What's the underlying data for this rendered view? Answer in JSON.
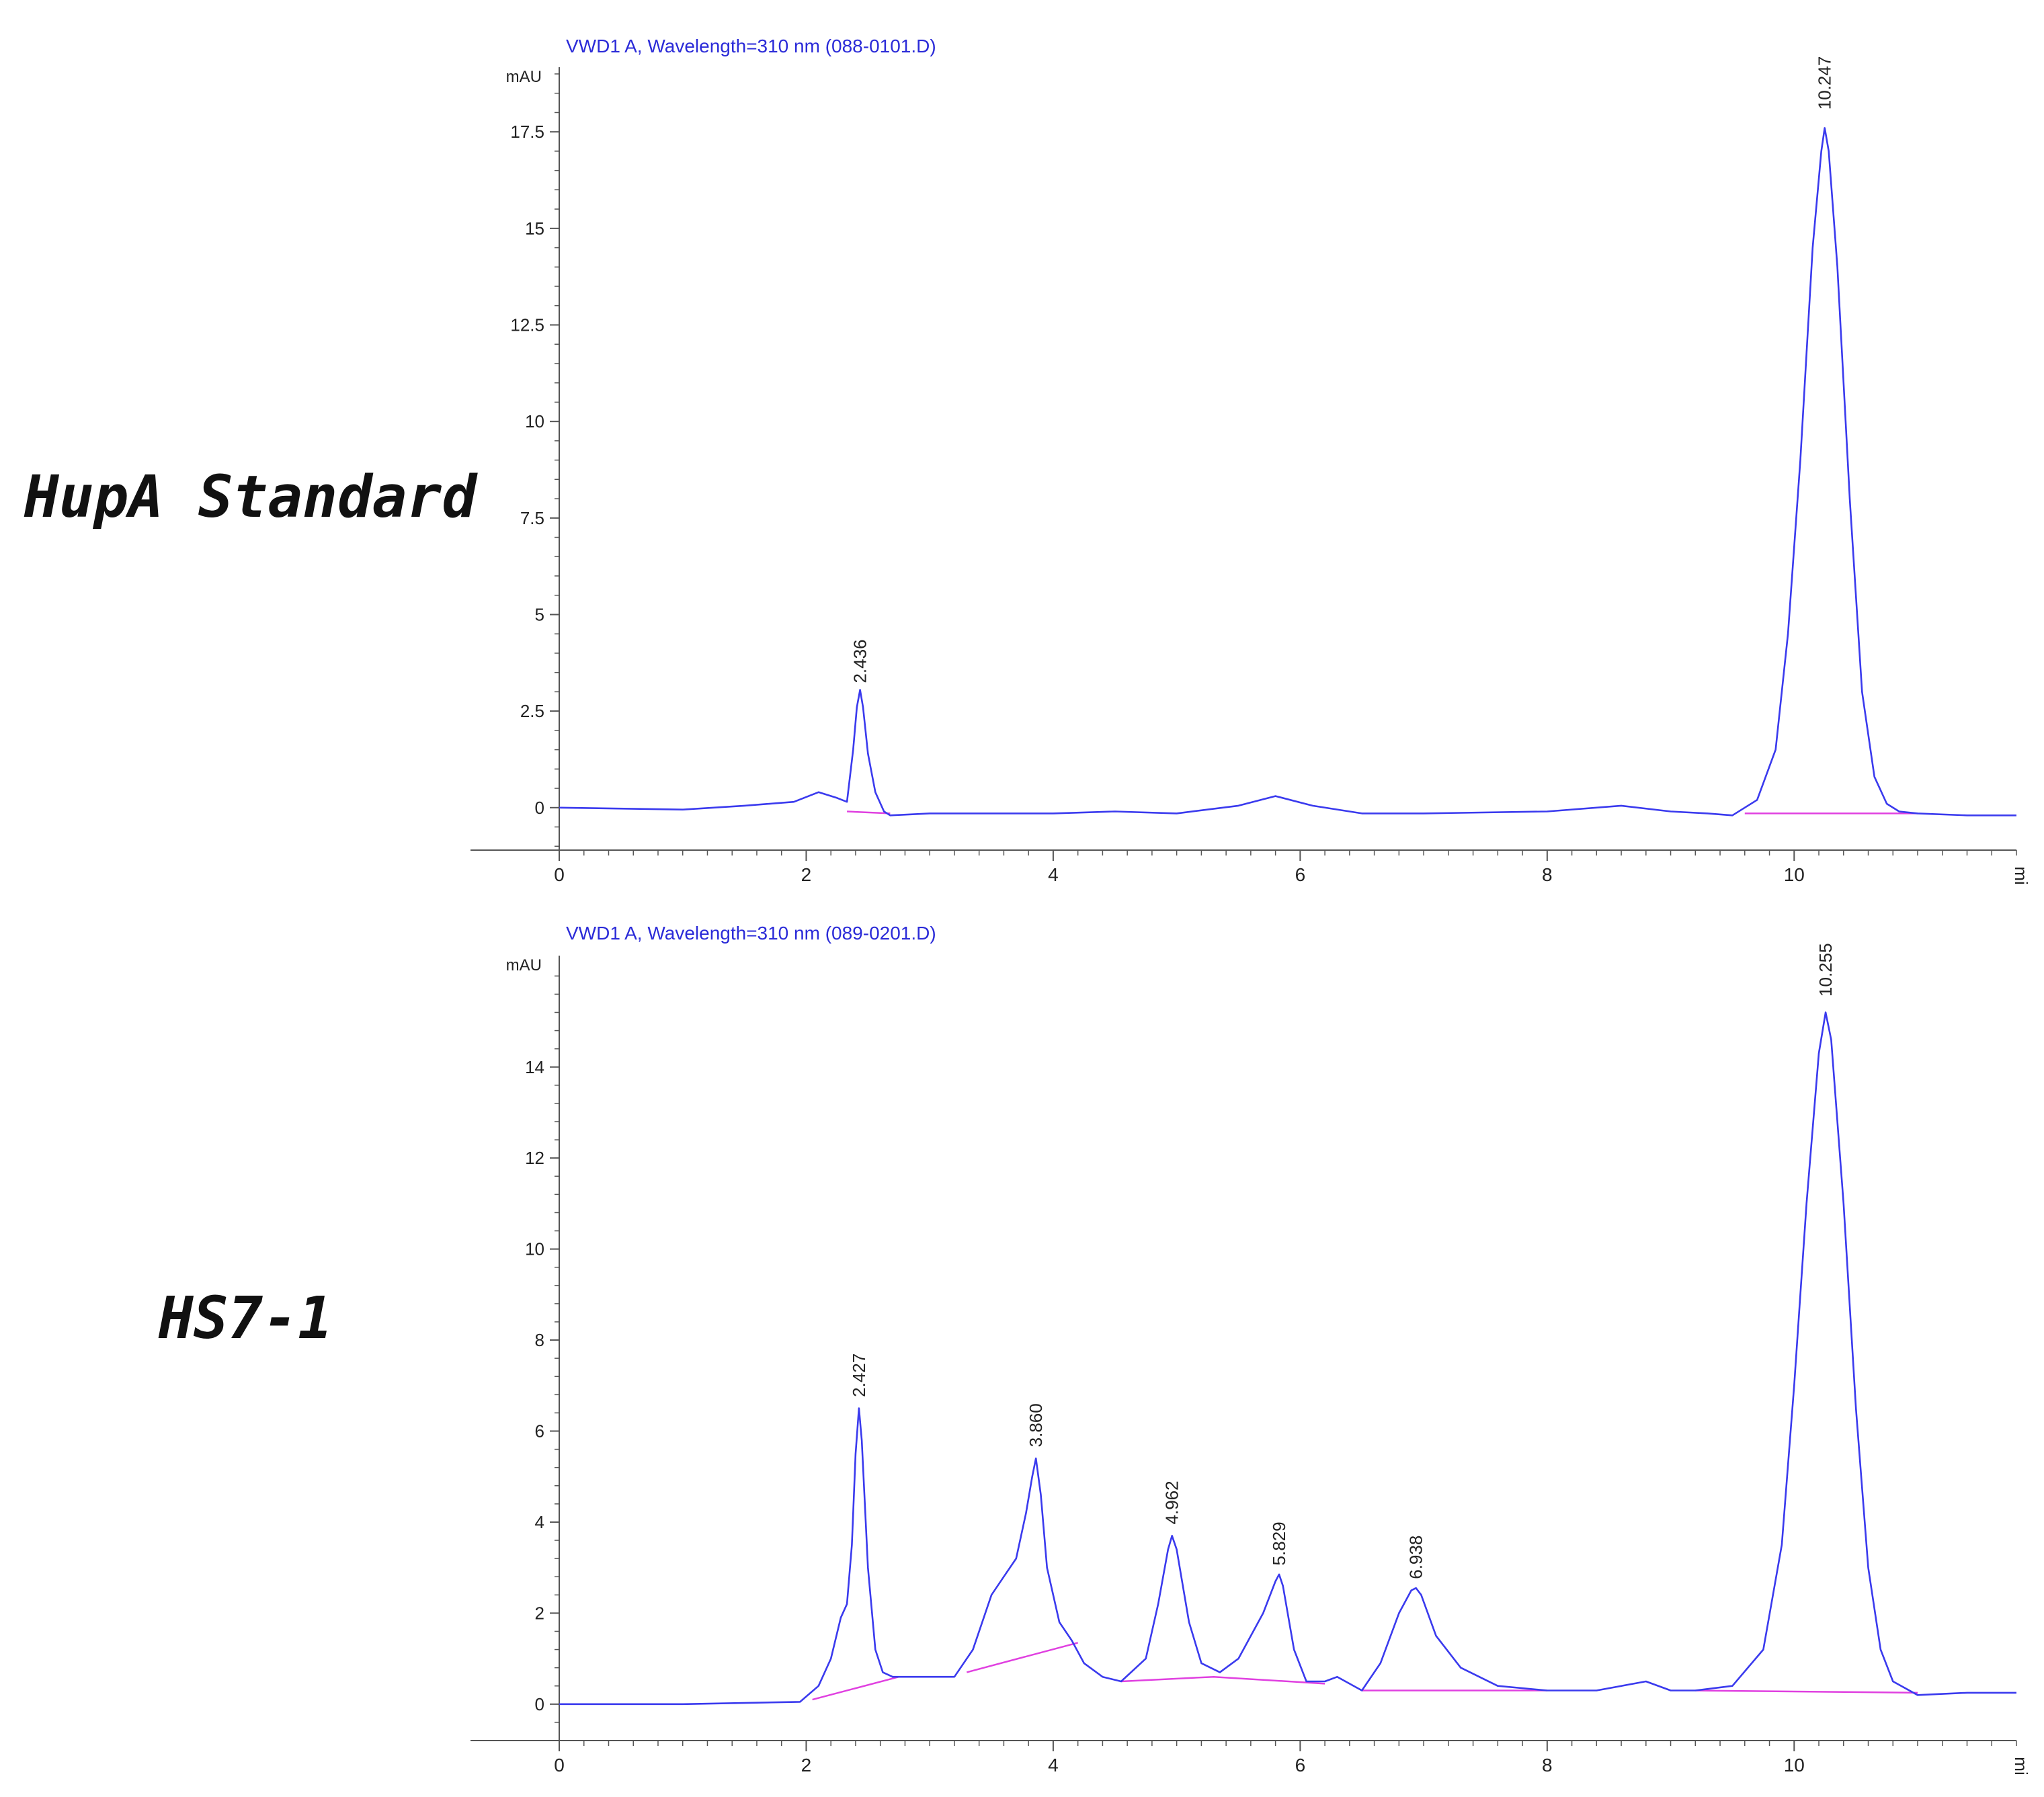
{
  "colors": {
    "trace": "#3a3aee",
    "baseline": "#e040e0",
    "axis": "#555555",
    "title": "#2b2bd8",
    "label": "#222222"
  },
  "panels": [
    {
      "sample_label": "HupA Standard",
      "title": "VWD1 A, Wavelength=310 nm (088-0101.D)"
    },
    {
      "sample_label": "HS7-1",
      "title": "VWD1 A, Wavelength=310 nm (089-0201.D)"
    }
  ],
  "chart_data": [
    {
      "type": "line",
      "title": "VWD1 A, Wavelength=310 nm (088-0101.D)",
      "ylabel": "mAU",
      "xlabel": "mi",
      "xlim": [
        0,
        11.8
      ],
      "ylim": [
        -1.1,
        19
      ],
      "x_ticks": [
        0,
        2,
        4,
        6,
        8,
        10
      ],
      "x_tick_labels": [
        "0",
        "2",
        "4",
        "6",
        "8",
        "10"
      ],
      "y_ticks": [
        0,
        2.5,
        5,
        7.5,
        10,
        12.5,
        15,
        17.5
      ],
      "y_tick_labels": [
        "0",
        "2.5",
        "5",
        "7.5",
        "10",
        "12.5",
        "15",
        "17.5"
      ],
      "peak_labels": [
        {
          "x": 2.436,
          "y": 3.05,
          "text": "2.436"
        },
        {
          "x": 10.247,
          "y": 17.9,
          "text": "10.247"
        }
      ],
      "series": [
        {
          "role": "trace",
          "x": [
            0,
            1.0,
            1.5,
            1.9,
            2.1,
            2.25,
            2.33,
            2.38,
            2.41,
            2.436,
            2.46,
            2.5,
            2.56,
            2.63,
            2.68,
            3.0,
            4.0,
            4.5,
            5.0,
            5.5,
            5.8,
            6.1,
            6.5,
            7.0,
            8.0,
            8.6,
            9.0,
            9.3,
            9.5,
            9.7,
            9.85,
            9.95,
            10.05,
            10.15,
            10.22,
            10.247,
            10.28,
            10.35,
            10.45,
            10.55,
            10.65,
            10.75,
            10.85,
            11.0,
            11.4,
            11.8
          ],
          "y": [
            0,
            -0.05,
            0.05,
            0.15,
            0.4,
            0.25,
            0.15,
            1.5,
            2.6,
            3.05,
            2.6,
            1.4,
            0.4,
            -0.1,
            -0.2,
            -0.15,
            -0.15,
            -0.1,
            -0.15,
            0.05,
            0.3,
            0.05,
            -0.15,
            -0.15,
            -0.1,
            0.05,
            -0.1,
            -0.15,
            -0.2,
            0.2,
            1.5,
            4.5,
            9.0,
            14.5,
            17.0,
            17.6,
            17.0,
            14.0,
            8.0,
            3.0,
            0.8,
            0.1,
            -0.1,
            -0.15,
            -0.2,
            -0.2
          ]
        },
        {
          "role": "baseline",
          "segments": [
            {
              "x": [
                2.33,
                2.68
              ],
              "y": [
                -0.1,
                -0.15
              ]
            },
            {
              "x": [
                9.6,
                11.0
              ],
              "y": [
                -0.15,
                -0.15
              ]
            }
          ]
        }
      ]
    },
    {
      "type": "line",
      "title": "VWD1 A, Wavelength=310 nm (089-0201.D)",
      "ylabel": "mAU",
      "xlabel": "mi",
      "xlim": [
        0,
        11.8
      ],
      "ylim": [
        -0.8,
        16.3
      ],
      "x_ticks": [
        0,
        2,
        4,
        6,
        8,
        10
      ],
      "x_tick_labels": [
        "0",
        "2",
        "4",
        "6",
        "8",
        "10"
      ],
      "y_ticks": [
        0,
        2,
        4,
        6,
        8,
        10,
        12,
        14
      ],
      "y_tick_labels": [
        "0",
        "2",
        "4",
        "6",
        "8",
        "10",
        "12",
        "14"
      ],
      "peak_labels": [
        {
          "x": 2.427,
          "y": 6.6,
          "text": "2.427"
        },
        {
          "x": 3.86,
          "y": 5.5,
          "text": "3.860"
        },
        {
          "x": 4.962,
          "y": 3.8,
          "text": "4.962"
        },
        {
          "x": 5.829,
          "y": 2.9,
          "text": "5.829"
        },
        {
          "x": 6.938,
          "y": 2.6,
          "text": "6.938"
        },
        {
          "x": 10.255,
          "y": 15.4,
          "text": "10.255"
        }
      ],
      "series": [
        {
          "role": "trace",
          "x": [
            0,
            1.0,
            1.95,
            2.1,
            2.2,
            2.28,
            2.33,
            2.37,
            2.4,
            2.427,
            2.45,
            2.5,
            2.56,
            2.62,
            2.7,
            3.0,
            3.2,
            3.35,
            3.5,
            3.6,
            3.7,
            3.78,
            3.83,
            3.86,
            3.9,
            3.95,
            4.05,
            4.15,
            4.25,
            4.4,
            4.55,
            4.75,
            4.85,
            4.93,
            4.962,
            5.0,
            5.1,
            5.2,
            5.35,
            5.5,
            5.7,
            5.8,
            5.829,
            5.86,
            5.95,
            6.05,
            6.2,
            6.3,
            6.5,
            6.65,
            6.8,
            6.9,
            6.938,
            6.98,
            7.1,
            7.3,
            7.6,
            8.0,
            8.4,
            8.8,
            9.0,
            9.2,
            9.5,
            9.75,
            9.9,
            10.0,
            10.1,
            10.2,
            10.255,
            10.3,
            10.4,
            10.5,
            10.6,
            10.7,
            10.8,
            11.0,
            11.4,
            11.8
          ],
          "y": [
            0,
            0,
            0.05,
            0.4,
            1.0,
            1.9,
            2.2,
            3.5,
            5.5,
            6.5,
            5.8,
            3.0,
            1.2,
            0.7,
            0.6,
            0.6,
            0.6,
            1.2,
            2.4,
            2.8,
            3.2,
            4.2,
            5.0,
            5.4,
            4.6,
            3.0,
            1.8,
            1.4,
            0.9,
            0.6,
            0.5,
            1.0,
            2.2,
            3.4,
            3.7,
            3.4,
            1.8,
            0.9,
            0.7,
            1.0,
            2.0,
            2.7,
            2.85,
            2.6,
            1.2,
            0.5,
            0.5,
            0.6,
            0.3,
            0.9,
            2.0,
            2.5,
            2.55,
            2.4,
            1.5,
            0.8,
            0.4,
            0.3,
            0.3,
            0.5,
            0.3,
            0.3,
            0.4,
            1.2,
            3.5,
            7.0,
            11.0,
            14.3,
            15.2,
            14.6,
            11.0,
            6.5,
            3.0,
            1.2,
            0.5,
            0.2,
            0.25,
            0.25
          ]
        },
        {
          "role": "baseline",
          "segments": [
            {
              "x": [
                2.05,
                2.75
              ],
              "y": [
                0.1,
                0.6
              ]
            },
            {
              "x": [
                3.3,
                4.2
              ],
              "y": [
                0.7,
                1.35
              ]
            },
            {
              "x": [
                4.55,
                5.3,
                6.2
              ],
              "y": [
                0.5,
                0.6,
                0.45
              ]
            },
            {
              "x": [
                6.5,
                8.0
              ],
              "y": [
                0.3,
                0.3
              ]
            },
            {
              "x": [
                9.2,
                11.0
              ],
              "y": [
                0.3,
                0.25
              ]
            }
          ]
        }
      ]
    }
  ]
}
